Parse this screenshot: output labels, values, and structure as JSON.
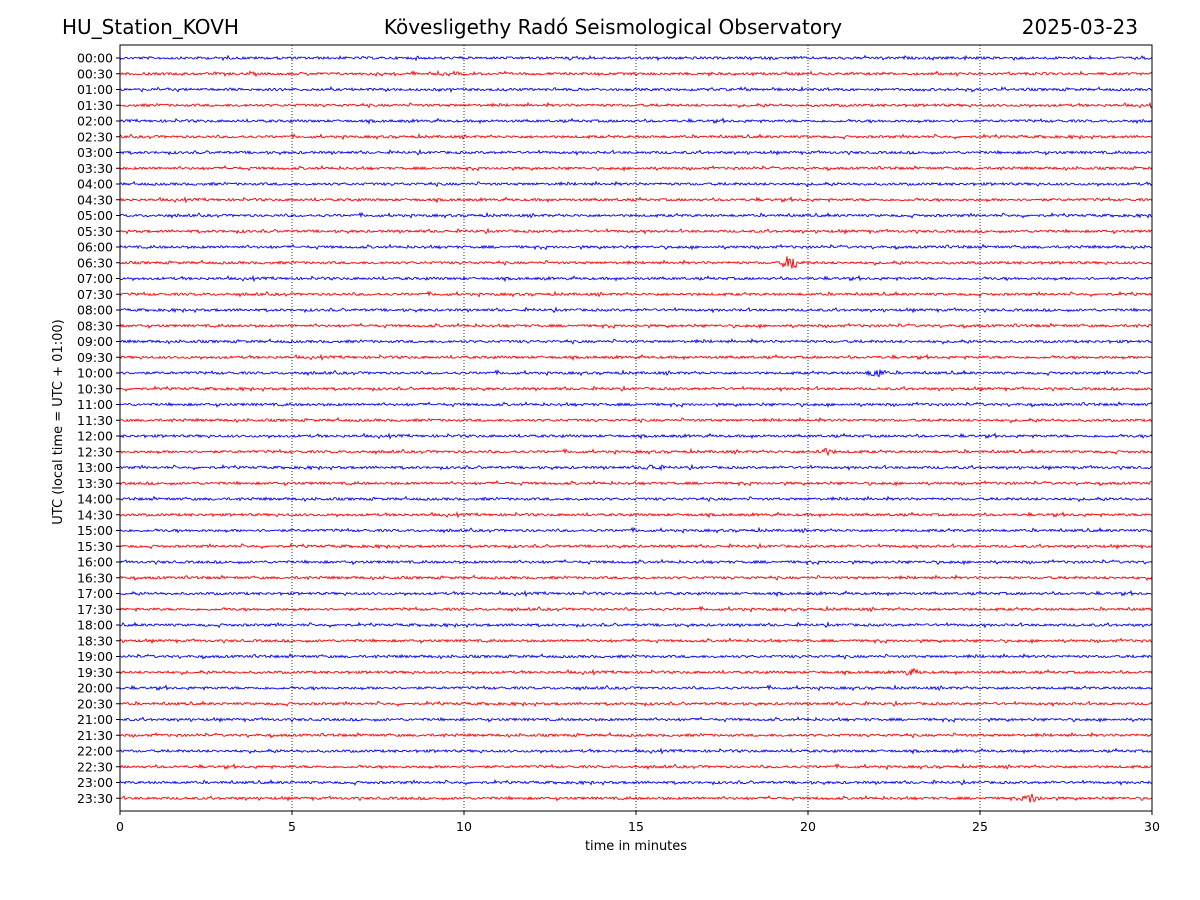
{
  "header": {
    "station": "HU_Station_KOVH",
    "title": "Kövesligethy Radó Seismological Observatory",
    "date": "2025-03-23"
  },
  "chart_data": {
    "type": "line",
    "title": "Kövesligethy Radó Seismological Observatory",
    "xlabel": "time in minutes",
    "ylabel": "UTC (local time = UTC + 01:00)",
    "xlim": [
      0,
      30
    ],
    "xticks": [
      0,
      5,
      10,
      15,
      20,
      25,
      30
    ],
    "rows": [
      "00:00",
      "00:30",
      "01:00",
      "01:30",
      "02:00",
      "02:30",
      "03:00",
      "03:30",
      "04:00",
      "04:30",
      "05:00",
      "05:30",
      "06:00",
      "06:30",
      "07:00",
      "07:30",
      "08:00",
      "08:30",
      "09:00",
      "09:30",
      "10:00",
      "10:30",
      "11:00",
      "11:30",
      "12:00",
      "12:30",
      "13:00",
      "13:30",
      "14:00",
      "14:30",
      "15:00",
      "15:30",
      "16:00",
      "16:30",
      "17:00",
      "17:30",
      "18:00",
      "18:30",
      "19:00",
      "19:30",
      "20:00",
      "20:30",
      "21:00",
      "21:30",
      "22:00",
      "22:30",
      "23:00",
      "23:30"
    ],
    "row_colors": [
      "#0000ff",
      "#ff0000"
    ],
    "grid": "vertical dotted",
    "events": [
      {
        "row": "06:30",
        "minute": 19.5,
        "amplitude": "large"
      },
      {
        "row": "10:00",
        "minute": 22.0,
        "amplitude": "medium"
      },
      {
        "row": "13:00",
        "minute": 15.5,
        "amplitude": "small"
      },
      {
        "row": "12:30",
        "minute": 20.5,
        "amplitude": "small"
      },
      {
        "row": "19:30",
        "minute": 23.0,
        "amplitude": "small"
      },
      {
        "row": "23:30",
        "minute": 26.5,
        "amplitude": "medium"
      }
    ]
  }
}
